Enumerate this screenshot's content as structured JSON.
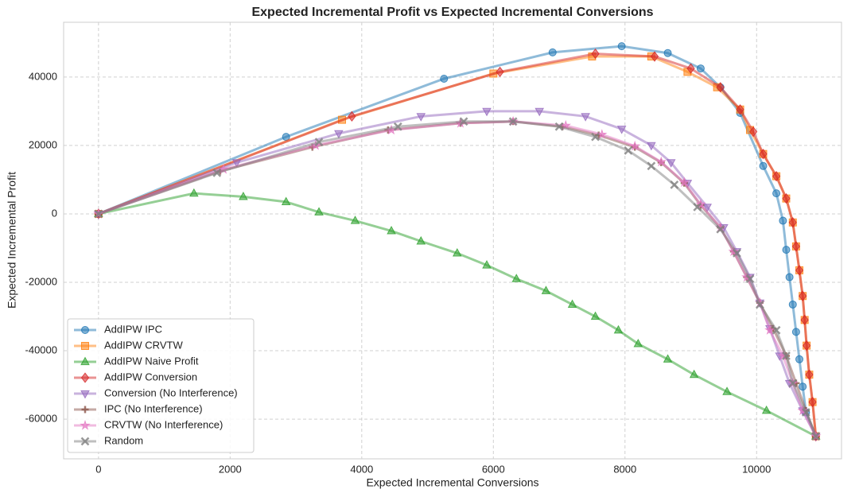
{
  "chart_data": {
    "type": "line",
    "title": "Expected Incremental Profit vs Expected Incremental Conversions",
    "x_label": "Expected Incremental Conversions",
    "y_label": "Expected Incremental Profit",
    "xlim": [
      -530,
      11290
    ],
    "ylim": [
      -71600,
      56000
    ],
    "xticks": [
      0,
      2000,
      4000,
      6000,
      8000,
      10000
    ],
    "yticks": [
      -60000,
      -40000,
      -20000,
      0,
      20000,
      40000
    ],
    "grid": true,
    "legend": "lower left",
    "series": [
      {
        "name": "AddIPW IPC",
        "color": "#1f77b4",
        "marker": "circle",
        "x": [
          0,
          2850,
          5250,
          6900,
          7950,
          8650,
          9150,
          9450,
          9750,
          10100,
          10300,
          10400,
          10450,
          10500,
          10550,
          10600,
          10650,
          10700,
          10750,
          10900
        ],
        "y": [
          0,
          22500,
          39500,
          47200,
          49000,
          47000,
          42500,
          37000,
          29500,
          14000,
          6000,
          -2000,
          -10500,
          -18500,
          -26500,
          -34500,
          -42500,
          -50500,
          -58000,
          -65000
        ]
      },
      {
        "name": "AddIPW CRVTW",
        "color": "#ff7f0e",
        "marker": "square",
        "x": [
          0,
          3700,
          6000,
          7500,
          8400,
          8950,
          9400,
          9750,
          9900,
          10100,
          10300,
          10450,
          10550,
          10600,
          10650,
          10700,
          10730,
          10760,
          10800,
          10850,
          10900
        ],
        "y": [
          0,
          27500,
          41000,
          46000,
          46000,
          41500,
          37000,
          30500,
          24500,
          17500,
          11000,
          4500,
          -2500,
          -9500,
          -16500,
          -24000,
          -31000,
          -38500,
          -47000,
          -55000,
          -65000
        ]
      },
      {
        "name": "AddIPW Naive Profit",
        "color": "#2ca02c",
        "marker": "triangle-up",
        "x": [
          0,
          1450,
          2200,
          2850,
          3350,
          3900,
          4450,
          4900,
          5450,
          5900,
          6350,
          6800,
          7200,
          7550,
          7900,
          8200,
          8650,
          9050,
          9550,
          10150,
          10900
        ],
        "y": [
          0,
          6000,
          5000,
          3500,
          500,
          -2000,
          -5000,
          -8000,
          -11500,
          -15000,
          -19000,
          -22500,
          -26500,
          -30000,
          -34000,
          -38000,
          -42500,
          -47000,
          -52000,
          -57500,
          -65000
        ]
      },
      {
        "name": "AddIPW Conversion",
        "color": "#d62728",
        "marker": "diamond",
        "x": [
          0,
          3850,
          6100,
          7550,
          8450,
          9000,
          9450,
          9750,
          9950,
          10100,
          10300,
          10450,
          10550,
          10600,
          10650,
          10700,
          10730,
          10760,
          10800,
          10850,
          10900
        ],
        "y": [
          0,
          28500,
          41500,
          46800,
          46000,
          42500,
          37000,
          30500,
          24000,
          17500,
          11000,
          4500,
          -2500,
          -9500,
          -16500,
          -24000,
          -31000,
          -38500,
          -47000,
          -55000,
          -65000
        ]
      },
      {
        "name": "Conversion (No Interference)",
        "color": "#9467bd",
        "marker": "triangle-down",
        "x": [
          0,
          2100,
          3650,
          4900,
          5900,
          6700,
          7400,
          7950,
          8400,
          8700,
          8950,
          9250,
          9500,
          9700,
          9900,
          10050,
          10200,
          10350,
          10500,
          10700,
          10900
        ],
        "y": [
          0,
          15000,
          23500,
          28500,
          30000,
          30000,
          28500,
          24800,
          20000,
          15000,
          9000,
          2000,
          -4000,
          -11000,
          -18500,
          -26000,
          -33500,
          -41500,
          -49500,
          -57500,
          -65000
        ]
      },
      {
        "name": "IPC (No Interference)",
        "color": "#8c564b",
        "marker": "plus",
        "x": [
          0,
          1850,
          3250,
          4400,
          5500,
          6300,
          7050,
          7600,
          8150,
          8550,
          8900,
          9150,
          9450,
          9650,
          9850,
          10050,
          10250,
          10450,
          10600,
          10750,
          10900
        ],
        "y": [
          0,
          12500,
          19500,
          24500,
          26500,
          27000,
          25500,
          23000,
          19500,
          15000,
          9000,
          2500,
          -4000,
          -11000,
          -18500,
          -26000,
          -33500,
          -41500,
          -49500,
          -57500,
          -65000
        ]
      },
      {
        "name": "CRVTW (No Interference)",
        "color": "#e377c2",
        "marker": "star",
        "x": [
          0,
          1900,
          3300,
          4450,
          5500,
          6300,
          7100,
          7650,
          8150,
          8550,
          8900,
          9150,
          9450,
          9650,
          9850,
          10050,
          10200,
          10400,
          10550,
          10700,
          10900
        ],
        "y": [
          0,
          13000,
          20000,
          24500,
          26500,
          27000,
          25800,
          23200,
          19800,
          15200,
          9200,
          2800,
          -4000,
          -11000,
          -18500,
          -26000,
          -34000,
          -41500,
          -49500,
          -57500,
          -65000
        ]
      },
      {
        "name": "Random",
        "color": "#7f7f7f",
        "marker": "x",
        "x": [
          0,
          1800,
          3350,
          4550,
          5550,
          6300,
          7000,
          7550,
          8050,
          8400,
          8750,
          9100,
          9450,
          9700,
          9900,
          10050,
          10300,
          10450,
          10550,
          10750,
          10900
        ],
        "y": [
          0,
          12000,
          21000,
          25500,
          27000,
          27000,
          25500,
          22500,
          18500,
          14000,
          8500,
          2000,
          -4500,
          -11500,
          -19000,
          -26500,
          -34000,
          -41500,
          -49500,
          -58000,
          -65000
        ]
      }
    ]
  }
}
